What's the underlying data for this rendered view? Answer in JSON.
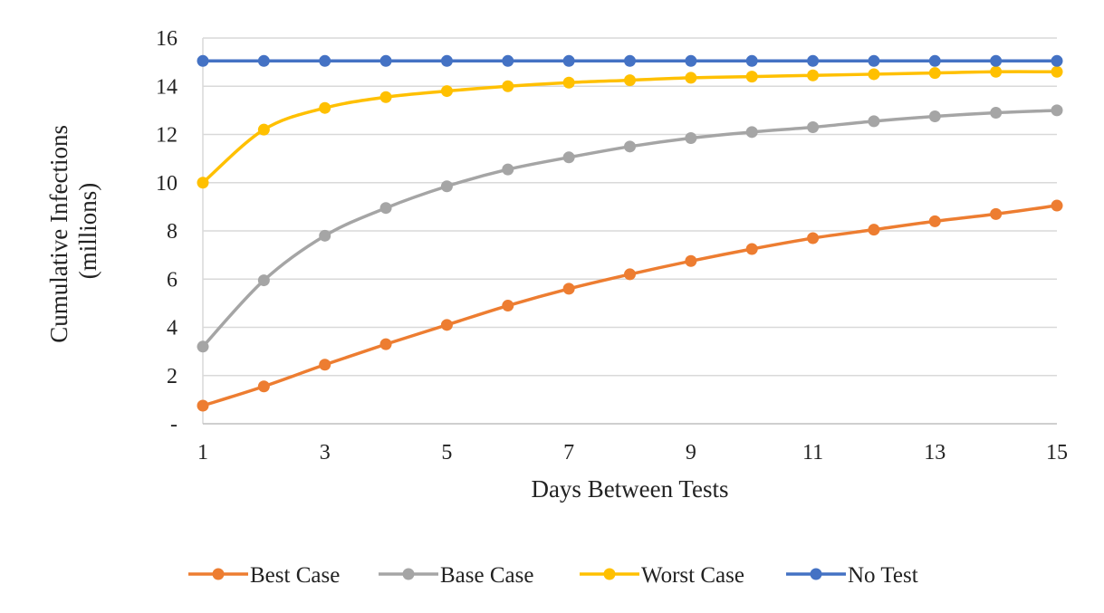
{
  "chart_data": {
    "type": "line",
    "title": "",
    "xlabel": "Days Between Tests",
    "ylabel": "Cumulative Infections (millions)",
    "ylabel_lines": [
      "Cumulative Infections",
      "(millions)"
    ],
    "xlim": [
      1,
      15
    ],
    "ylim": [
      0,
      16
    ],
    "x_ticks": [
      1,
      3,
      5,
      7,
      9,
      11,
      13,
      15
    ],
    "y_ticks": [
      0,
      2,
      4,
      6,
      8,
      10,
      12,
      14,
      16
    ],
    "y_tick_labels": [
      "-",
      "2",
      "4",
      "6",
      "8",
      "10",
      "12",
      "14",
      "16"
    ],
    "grid": true,
    "legend_position": "bottom",
    "x": [
      1,
      2,
      3,
      4,
      5,
      6,
      7,
      8,
      9,
      10,
      11,
      12,
      13,
      14,
      15
    ],
    "series": [
      {
        "name": "Best Case",
        "color": "#ed7d31",
        "values": [
          0.75,
          1.55,
          2.45,
          3.3,
          4.1,
          4.9,
          5.6,
          6.2,
          6.75,
          7.25,
          7.7,
          8.05,
          8.4,
          8.7,
          9.05
        ]
      },
      {
        "name": "Base Case",
        "color": "#a5a5a5",
        "values": [
          3.2,
          5.95,
          7.8,
          8.95,
          9.85,
          10.55,
          11.05,
          11.5,
          11.85,
          12.1,
          12.3,
          12.55,
          12.75,
          12.9,
          13.0
        ]
      },
      {
        "name": "Worst Case",
        "color": "#ffc000",
        "values": [
          10.0,
          12.2,
          13.1,
          13.55,
          13.8,
          14.0,
          14.15,
          14.25,
          14.35,
          14.4,
          14.45,
          14.5,
          14.55,
          14.6,
          14.6
        ]
      },
      {
        "name": "No Test",
        "color": "#4472c4",
        "values": [
          15.05,
          15.05,
          15.05,
          15.05,
          15.05,
          15.05,
          15.05,
          15.05,
          15.05,
          15.05,
          15.05,
          15.05,
          15.05,
          15.05,
          15.05
        ]
      }
    ]
  }
}
